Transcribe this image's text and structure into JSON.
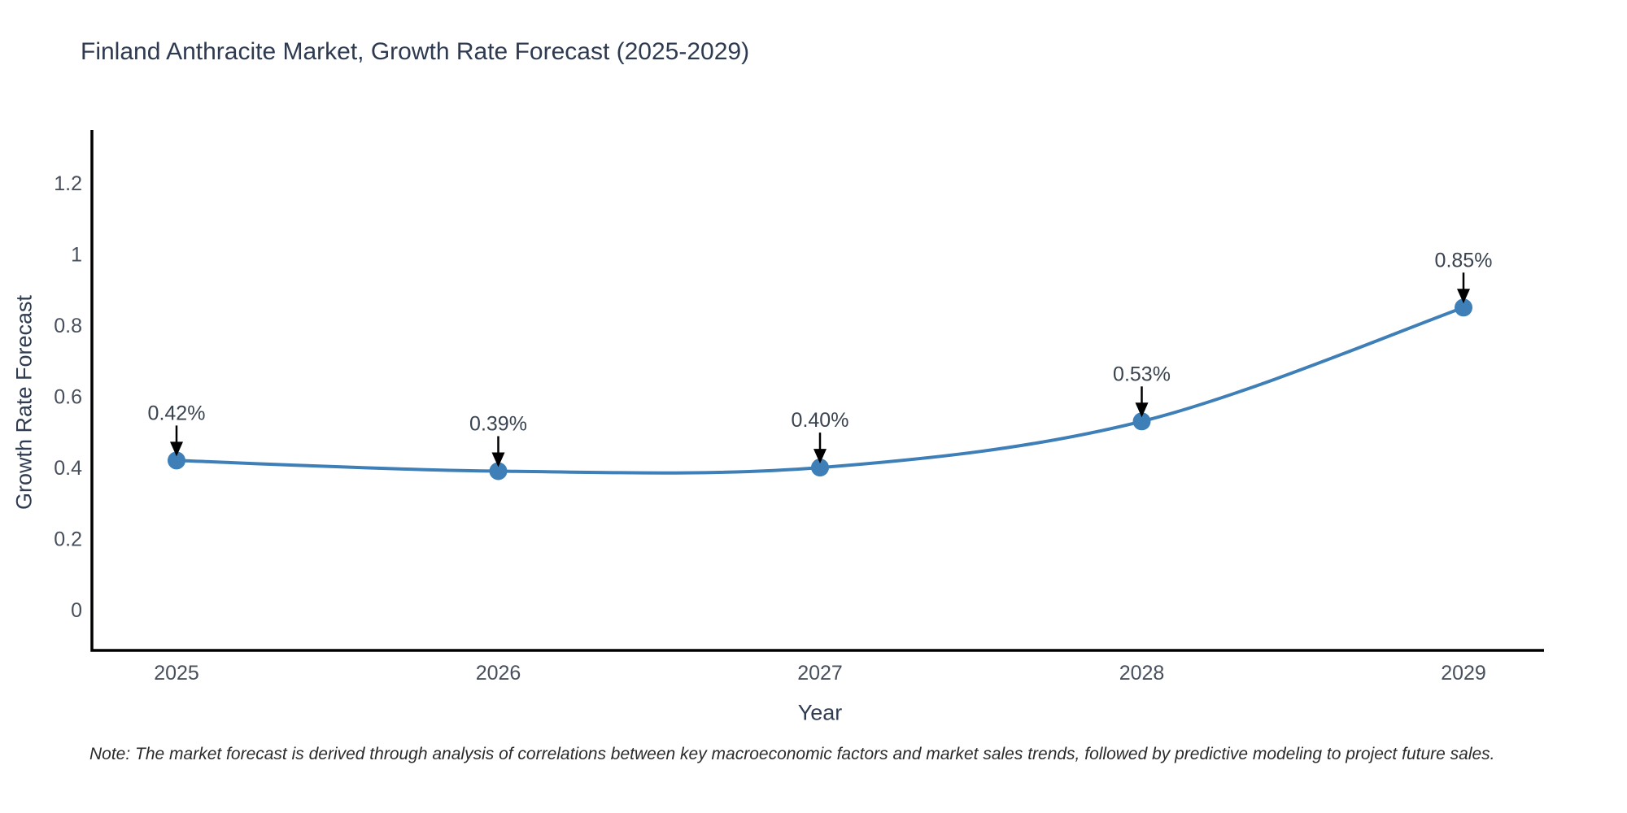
{
  "page": {
    "background": "#ffffff"
  },
  "title": "Finland Anthracite Market, Growth Rate Forecast (2025-2029)",
  "note": "Note: The market forecast is derived through analysis of correlations between key macroeconomic factors and market sales trends, followed by predictive modeling to project future sales.",
  "chart_data": {
    "type": "line",
    "line_shape": "spline",
    "title": "Finland Anthracite Market, Growth Rate Forecast (2025-2029)",
    "xlabel": "Year",
    "ylabel": "Growth Rate Forecast",
    "categories": [
      "2025",
      "2026",
      "2027",
      "2028",
      "2029"
    ],
    "series": [
      {
        "name": "Growth Rate Forecast",
        "values": [
          0.42,
          0.39,
          0.4,
          0.53,
          0.85
        ]
      }
    ],
    "point_labels": [
      "0.42%",
      "0.39%",
      "0.40%",
      "0.53%",
      "0.85%"
    ],
    "ytick_values": [
      0,
      0.2,
      0.4,
      0.6,
      0.8,
      1,
      1.2
    ],
    "ytick_labels": [
      "0",
      "0.2",
      "0.4",
      "0.6",
      "0.8",
      "1",
      "1.2"
    ],
    "ylim": [
      -0.114,
      1.349
    ],
    "grid": false,
    "legend_position": "none",
    "annotation_style": "arrow-down-to-point",
    "colors": {
      "line": "#3f7fb7",
      "marker": "#3f7fb7",
      "axis_line": "#000000",
      "tick_text": "#474f5c",
      "annotation_text": "#3a4350",
      "arrow": "#000000",
      "title_text": "#2e3a50",
      "axis_title_text": "#303c52",
      "note_text": "#2b2b2b",
      "background": "#ffffff"
    }
  }
}
